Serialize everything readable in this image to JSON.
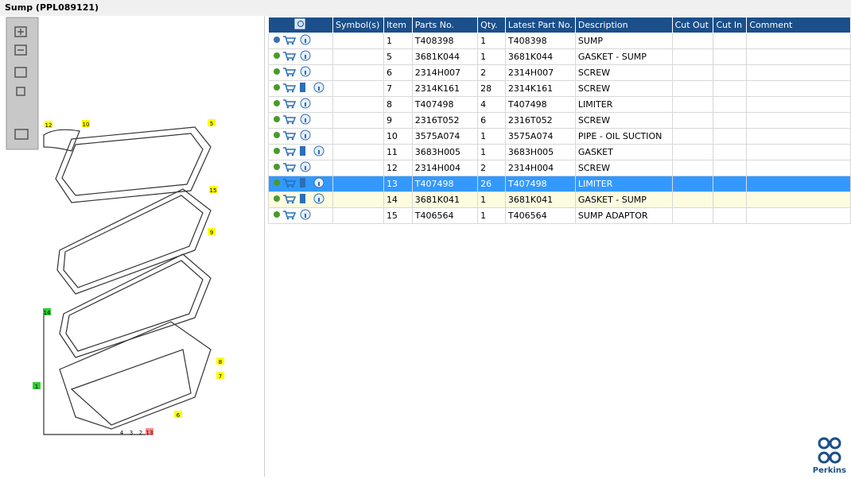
{
  "header": {
    "title": "Sump (PPL089121)"
  },
  "table": {
    "headers": [
      "Symbol(s)",
      "Item",
      "Parts No.",
      "Qty.",
      "Latest Part No.",
      "Description",
      "Cut Out",
      "Cut In",
      "Comment"
    ],
    "rows": [
      [
        1,
        "T408398",
        1,
        "T408398",
        "SUMP"
      ],
      [
        5,
        "3681K044",
        1,
        "3681K044",
        "GASKET - SUMP"
      ],
      [
        6,
        "2314H007",
        2,
        "2314H007",
        "SCREW"
      ],
      [
        7,
        "2314K161",
        28,
        "2314K161",
        "SCREW"
      ],
      [
        8,
        "T407498",
        4,
        "T407498",
        "LIMITER"
      ],
      [
        9,
        "2316T052",
        6,
        "2316T052",
        "SCREW"
      ],
      [
        10,
        "3575A074",
        1,
        "3575A074",
        "PIPE - OIL SUCTION"
      ],
      [
        11,
        "3683H005",
        1,
        "3683H005",
        "GASKET"
      ],
      [
        12,
        "2314H004",
        2,
        "2314H004",
        "SCREW"
      ],
      [
        13,
        "T407498",
        26,
        "T407498",
        "LIMITER"
      ],
      [
        14,
        "3681K041",
        1,
        "3681K041",
        "GASKET - SUMP"
      ],
      [
        15,
        "T406564",
        1,
        "T406564",
        "SUMP ADAPTOR"
      ]
    ]
  },
  "diagram": {
    "callouts": [
      "12",
      "10",
      "5",
      "15",
      "9",
      "14",
      "1",
      "8",
      "7",
      "6",
      "4",
      "3",
      "2",
      "13"
    ]
  },
  "logo": {
    "text": "Perkins"
  }
}
